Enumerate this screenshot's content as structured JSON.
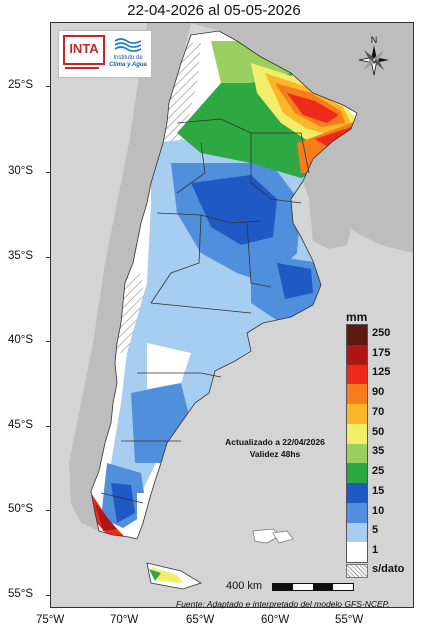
{
  "title": "22-04-2026 al 05-05-2026",
  "logos": {
    "inta": "INTA",
    "instituto_line1": "Instituto de",
    "instituto_line2": "Clima y Agua"
  },
  "compass": {
    "north_label": "N",
    "icon": "compass-rose-icon"
  },
  "y_axis": [
    "25°S",
    "30°S",
    "35°S",
    "40°S",
    "45°S",
    "50°S",
    "55°S"
  ],
  "x_axis": [
    "75°W",
    "70°W",
    "65°W",
    "60°W",
    "55°W"
  ],
  "legend": {
    "unit": "mm",
    "classes": [
      {
        "label": "250",
        "color": "#5c1a10"
      },
      {
        "label": "175",
        "color": "#b01515"
      },
      {
        "label": "125",
        "color": "#ee2a1a"
      },
      {
        "label": "90",
        "color": "#f77c1c"
      },
      {
        "label": "70",
        "color": "#fbb62a"
      },
      {
        "label": "50",
        "color": "#f3ee6a"
      },
      {
        "label": "35",
        "color": "#99d060"
      },
      {
        "label": "25",
        "color": "#2ea842"
      },
      {
        "label": "15",
        "color": "#1f59c4"
      },
      {
        "label": "10",
        "color": "#4f8fdc"
      },
      {
        "label": "5",
        "color": "#a7cdf0"
      },
      {
        "label": "1",
        "color": "#ffffff"
      }
    ],
    "no_data_label": "s/dato"
  },
  "annotation": {
    "line1": "Actualizado a 22/04/2026",
    "line2": "Validez 48hs"
  },
  "scale": {
    "label": "400 km"
  },
  "source": "Fuente: Adaptado e interpretado del modelo GFS-NCEP."
}
